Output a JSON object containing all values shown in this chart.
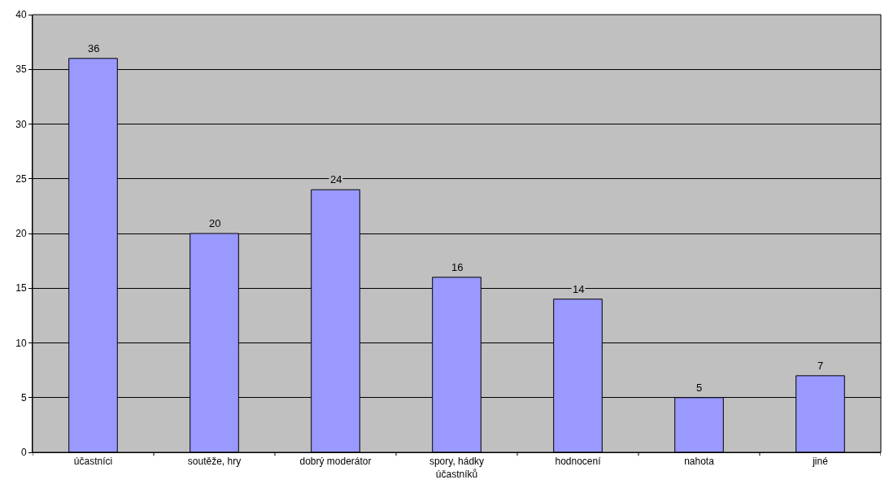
{
  "chart_data": {
    "type": "bar",
    "categories": [
      "účastníci",
      "soutěže, hry",
      "dobrý moderátor",
      "spory, hádky\núčastníků",
      "hodnocení",
      "nahota",
      "jiné"
    ],
    "values": [
      36,
      20,
      24,
      16,
      14,
      5,
      7
    ],
    "color": "#9999ff",
    "ylim": [
      0,
      40
    ],
    "yticks": [
      0,
      5,
      10,
      15,
      20,
      25,
      30,
      35,
      40
    ],
    "grid": "y",
    "data_labels": true
  }
}
